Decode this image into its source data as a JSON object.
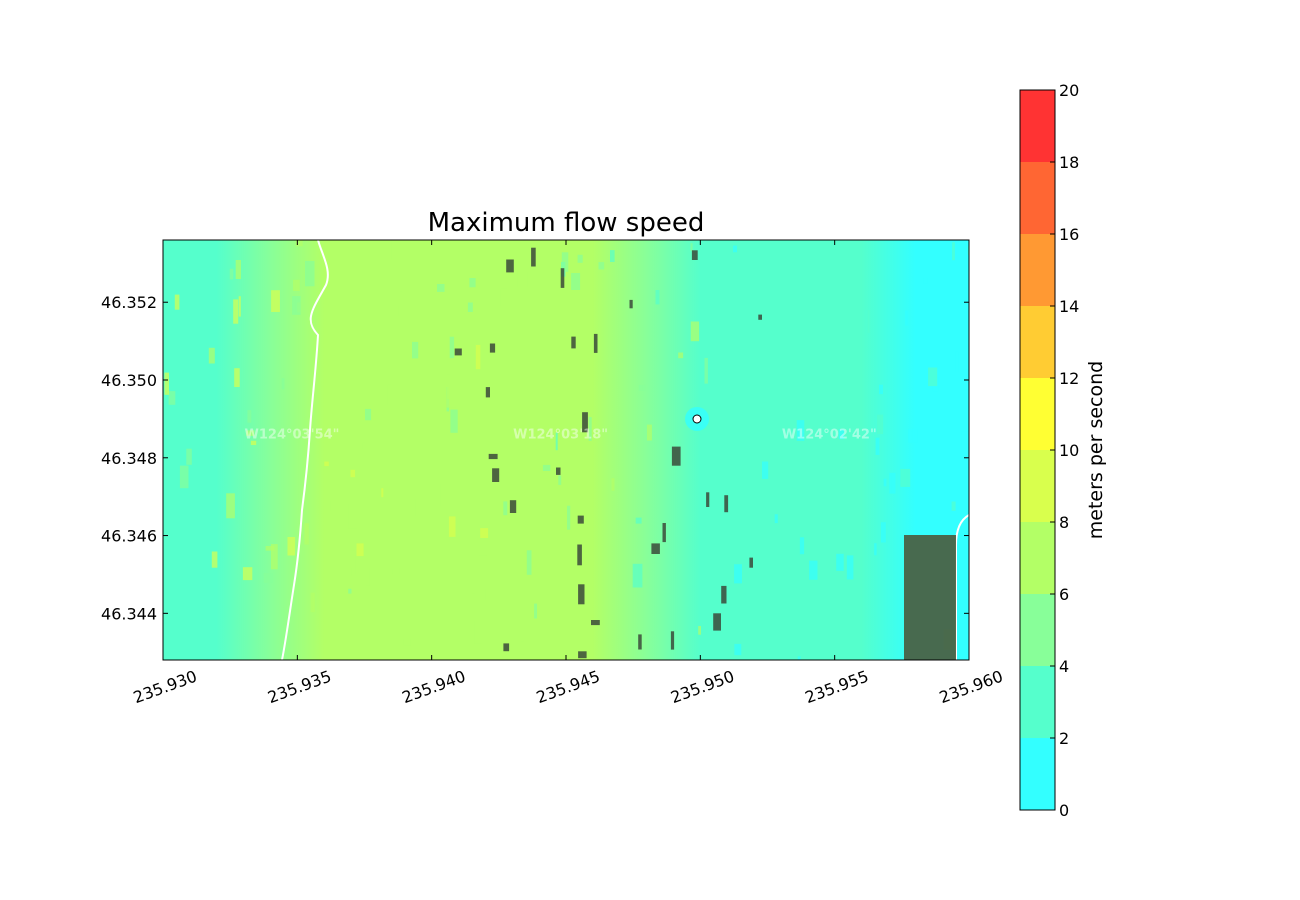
{
  "chart_data": {
    "type": "heatmap",
    "title": "Maximum flow speed",
    "xlabel": "",
    "ylabel": "",
    "xlim": [
      235.93,
      235.96
    ],
    "ylim": [
      46.3428,
      46.3536
    ],
    "x_ticks": [
      "235.930",
      "235.935",
      "235.940",
      "235.945",
      "235.950",
      "235.955",
      "235.960"
    ],
    "y_ticks": [
      "46.344",
      "46.346",
      "46.348",
      "46.350",
      "46.352"
    ],
    "x_tick_values": [
      235.93,
      235.935,
      235.94,
      235.945,
      235.95,
      235.955,
      235.96
    ],
    "y_tick_values": [
      46.344,
      46.346,
      46.348,
      46.35,
      46.352
    ],
    "background_labels": [
      "W124°03'54\"",
      "W124°03'18\"",
      "W124°02'42\""
    ],
    "background_label_lons": [
      235.9348,
      235.9448,
      235.9548
    ],
    "background_label_lat": 46.3485,
    "colorbar": {
      "label": "meters per second",
      "ticks": [
        "0",
        "2",
        "4",
        "6",
        "8",
        "10",
        "12",
        "14",
        "16",
        "18",
        "20"
      ],
      "levels": [
        0,
        2,
        4,
        6,
        8,
        10,
        12,
        14,
        16,
        18,
        20
      ],
      "colors": [
        "#33ffff",
        "#55ffcc",
        "#88ff99",
        "#b3ff66",
        "#d9ff4d",
        "#ffff33",
        "#ffcc33",
        "#ff9933",
        "#ff6633",
        "#ff3333"
      ]
    },
    "speed_profile_by_longitude": {
      "x": [
        235.93,
        235.932,
        235.934,
        235.936,
        235.938,
        235.94,
        235.942,
        235.944,
        235.946,
        235.948,
        235.95,
        235.952,
        235.954,
        235.956,
        235.958,
        235.96
      ],
      "values": [
        3,
        3,
        5,
        6,
        7,
        6,
        6,
        6,
        6,
        5,
        3,
        3,
        2,
        2,
        1,
        1
      ]
    },
    "grid": false,
    "legend": "colorbar-right"
  }
}
